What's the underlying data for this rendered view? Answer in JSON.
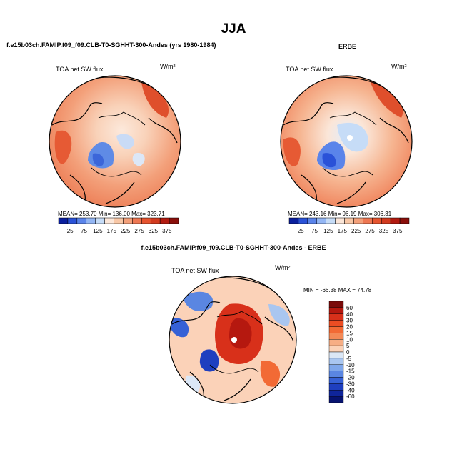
{
  "page": {
    "title": "JJA",
    "left_panel_title": "f.e15b03ch.FAMIP.f09_f09.CLB-T0-SGHHT-300-Andes (yrs 1980-1984)",
    "right_panel_title": "ERBE",
    "diff_panel_title": "f.e15b03ch.FAMIP.f09_f09.CLB-T0-SGHHT-300-Andes - ERBE"
  },
  "chart_data": [
    {
      "type": "heatmap",
      "projection": "polar-stereographic-north",
      "variable": "TOA net SW flux",
      "units": "W/m²",
      "stats": {
        "mean": "253.70",
        "min": "136.00",
        "max": "323.71"
      },
      "stats_text": "MEAN= 253.70   Min= 136.00   Max= 323.71",
      "colorbar_ticks": [
        "25",
        "75",
        "125",
        "175",
        "225",
        "275",
        "325",
        "375"
      ],
      "colorbar_colors": [
        "#0a1f9e",
        "#2a52d8",
        "#5a84ea",
        "#93b6f4",
        "#c6dcf7",
        "#fbe6d8",
        "#f8c7a6",
        "#f3a07a",
        "#ee7752",
        "#e6542f",
        "#d23a1f",
        "#b21a10",
        "#8a0f0a"
      ]
    },
    {
      "type": "heatmap",
      "projection": "polar-stereographic-north",
      "variable": "TOA net SW flux",
      "units": "W/m²",
      "stats": {
        "mean": "243.16",
        "min": "96.19",
        "max": "306.31"
      },
      "stats_text": "MEAN= 243.16   Min=  96.19   Max= 306.31",
      "colorbar_ticks": [
        "25",
        "75",
        "125",
        "175",
        "225",
        "275",
        "325",
        "375"
      ],
      "colorbar_colors": [
        "#0a1f9e",
        "#2a52d8",
        "#5a84ea",
        "#93b6f4",
        "#c6dcf7",
        "#fbe6d8",
        "#f8c7a6",
        "#f3a07a",
        "#ee7752",
        "#e6542f",
        "#d23a1f",
        "#b21a10",
        "#8a0f0a"
      ]
    },
    {
      "type": "heatmap",
      "projection": "polar-stereographic-north",
      "variable": "TOA net SW flux",
      "units": "W/m²",
      "stats": {
        "min": "-66.38",
        "max": "74.78"
      },
      "stats_text": "MIN = -66.38 MAX =  74.78",
      "colorbar_levels": [
        "60",
        "40",
        "30",
        "20",
        "15",
        "10",
        "5",
        "0",
        "-5",
        "-10",
        "-15",
        "-20",
        "-30",
        "-40",
        "-60"
      ],
      "colorbar_colors": [
        "#7a0a0a",
        "#b5180f",
        "#d8301a",
        "#ec4d23",
        "#f26a35",
        "#f48a57",
        "#f7ae85",
        "#fbd2b8",
        "#dbe7f6",
        "#a9c6f0",
        "#7fa7ea",
        "#5a86e2",
        "#3661d6",
        "#1f3fbf",
        "#0f259a",
        "#071370"
      ]
    }
  ]
}
